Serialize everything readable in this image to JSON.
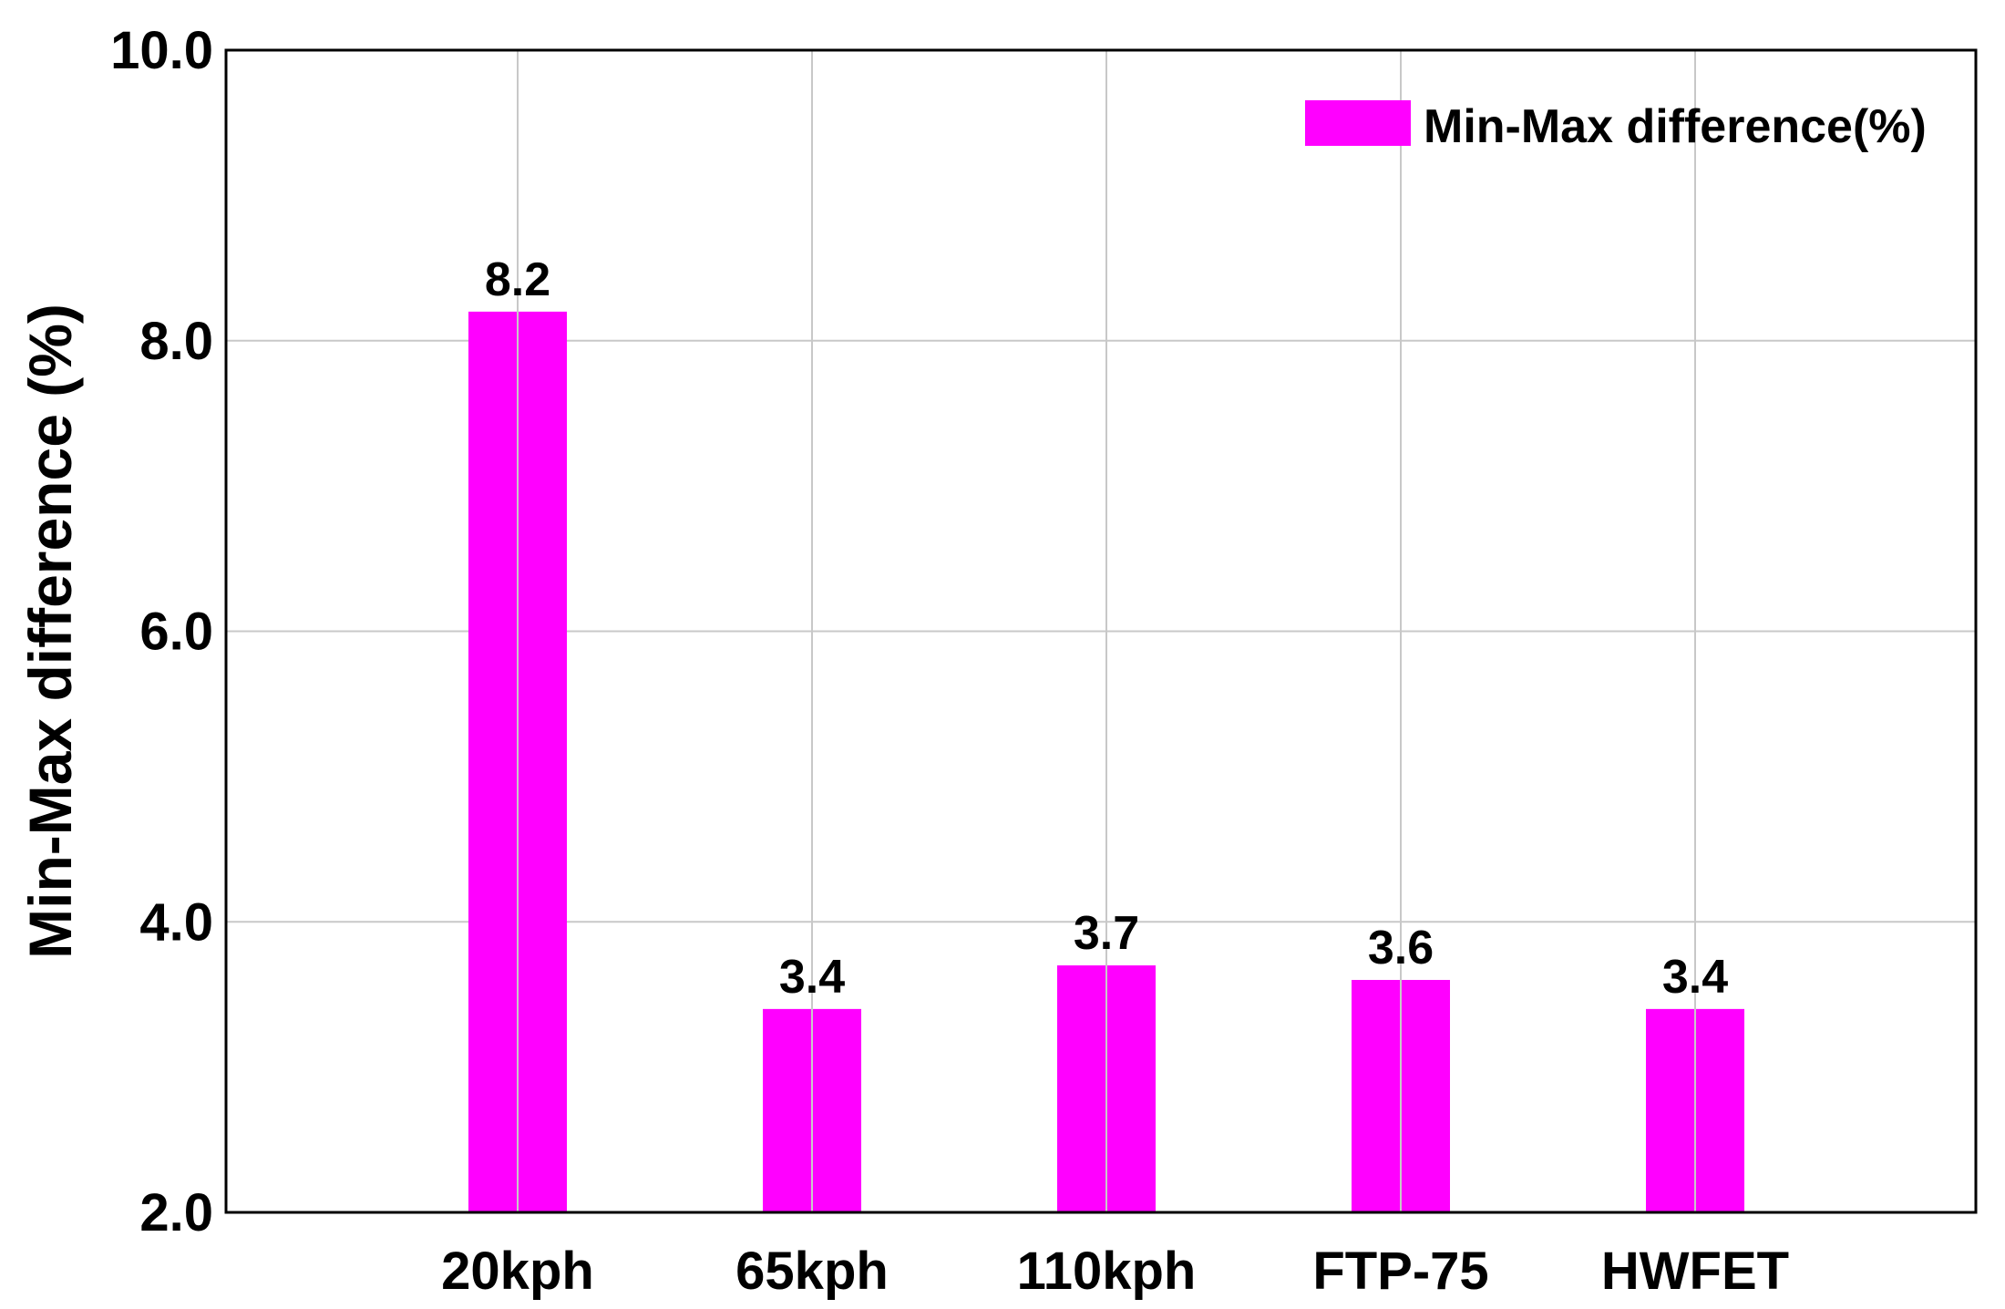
{
  "chart_data": {
    "type": "bar",
    "title": "",
    "xlabel": "",
    "ylabel": "Min-Max difference (%)",
    "categories": [
      "20kph",
      "65kph",
      "110kph",
      "FTP-75",
      "HWFET"
    ],
    "series": [
      {
        "name": "Min-Max difference(%)",
        "values": [
          8.2,
          3.4,
          3.7,
          3.6,
          3.4
        ]
      }
    ],
    "data_labels": [
      "8.2",
      "3.4",
      "3.7",
      "3.6",
      "3.4"
    ],
    "ylim": [
      2.0,
      10.0
    ],
    "yticks": [
      "2.0",
      "4.0",
      "6.0",
      "8.0",
      "10.0"
    ],
    "grid": true,
    "legend_position": "top-right",
    "bar_color": "#ff00ff"
  }
}
